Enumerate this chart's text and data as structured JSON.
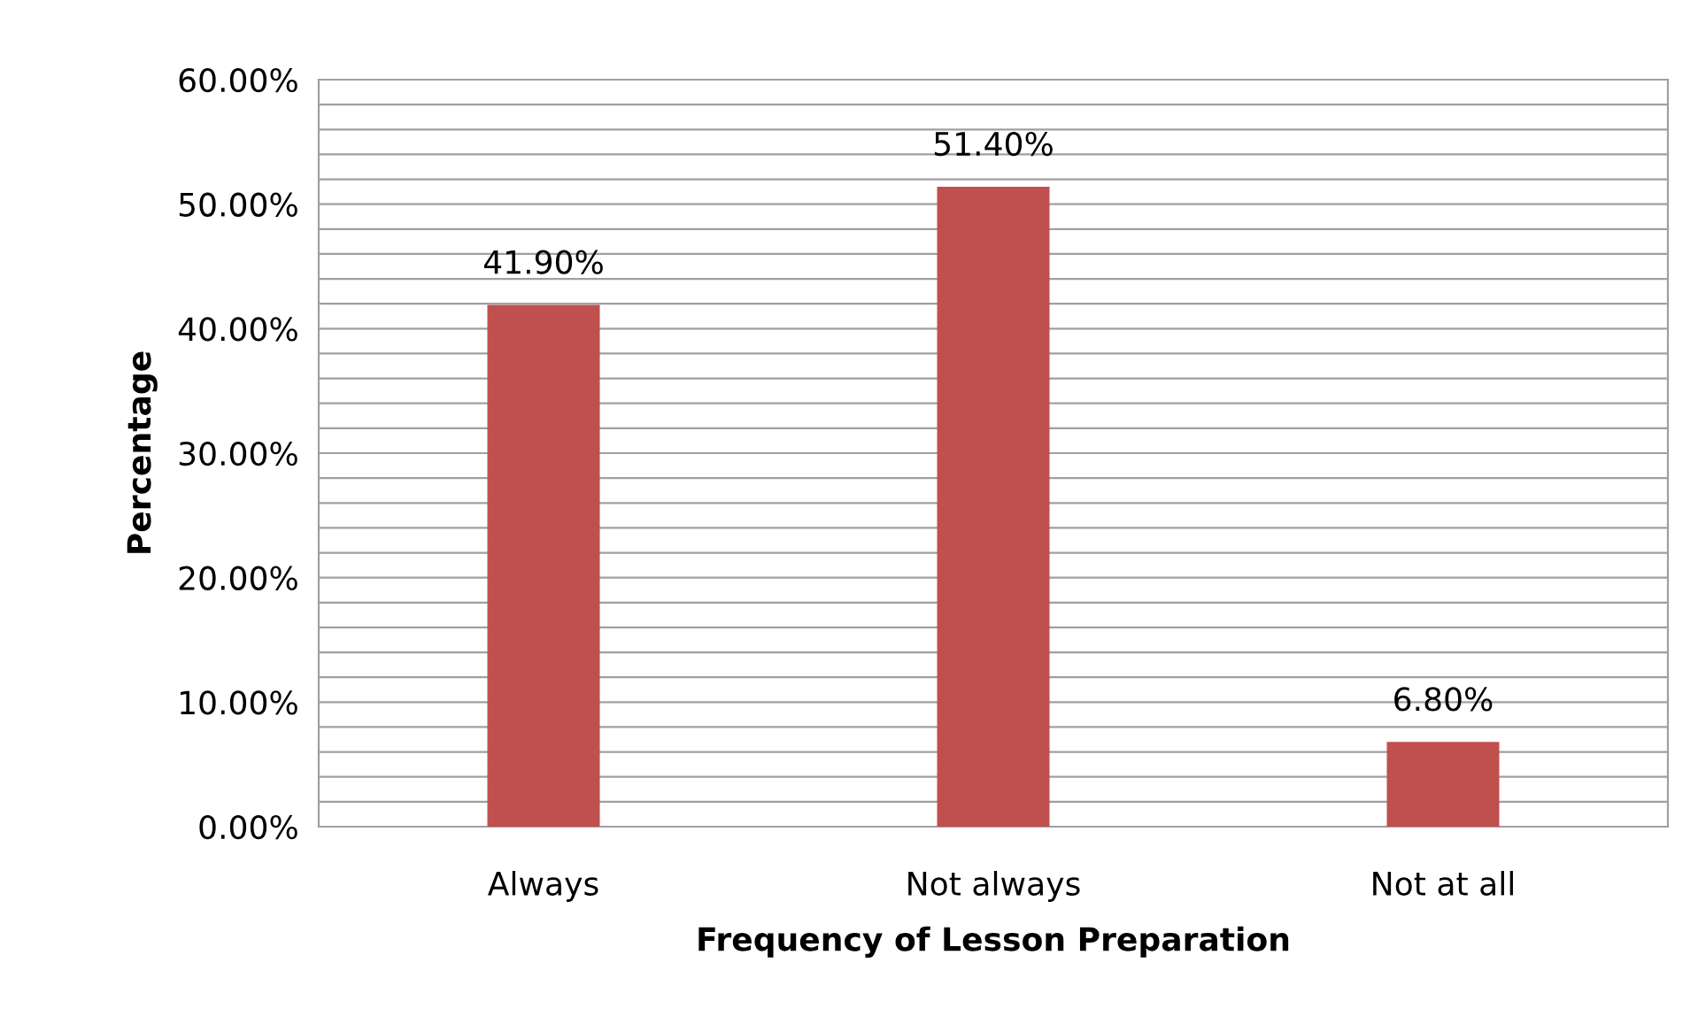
{
  "chart_data": {
    "type": "bar",
    "xlabel": "Frequency of Lesson Preparation",
    "ylabel": "Percentage",
    "categories": [
      "Always",
      "Not always",
      "Not at all"
    ],
    "values": [
      41.9,
      51.4,
      6.8
    ],
    "color": "#c0504d",
    "value_labels": [
      "41.90%",
      "51.40%",
      "6.80%"
    ],
    "ylim": [
      0,
      60
    ],
    "yticks": [
      {
        "value": 0,
        "label": "0.00%"
      },
      {
        "value": 2,
        "label": null
      },
      {
        "value": 4,
        "label": null
      },
      {
        "value": 6,
        "label": null
      },
      {
        "value": 8,
        "label": null
      },
      {
        "value": 10,
        "label": "10.00%"
      },
      {
        "value": 12,
        "label": null
      },
      {
        "value": 14,
        "label": null
      },
      {
        "value": 16,
        "label": null
      },
      {
        "value": 18,
        "label": null
      },
      {
        "value": 20,
        "label": "20.00%"
      },
      {
        "value": 22,
        "label": null
      },
      {
        "value": 24,
        "label": null
      },
      {
        "value": 26,
        "label": null
      },
      {
        "value": 28,
        "label": null
      },
      {
        "value": 30,
        "label": "30.00%"
      },
      {
        "value": 32,
        "label": null
      },
      {
        "value": 34,
        "label": null
      },
      {
        "value": 36,
        "label": null
      },
      {
        "value": 38,
        "label": null
      },
      {
        "value": 40,
        "label": "40.00%"
      },
      {
        "value": 42,
        "label": null
      },
      {
        "value": 44,
        "label": null
      },
      {
        "value": 46,
        "label": null
      },
      {
        "value": 48,
        "label": null
      },
      {
        "value": 50,
        "label": "50.00%"
      },
      {
        "value": 52,
        "label": null
      },
      {
        "value": 54,
        "label": null
      },
      {
        "value": 56,
        "label": null
      },
      {
        "value": 58,
        "label": null
      },
      {
        "value": 60,
        "label": "60.00%"
      }
    ],
    "grid": "y",
    "legend": false
  }
}
